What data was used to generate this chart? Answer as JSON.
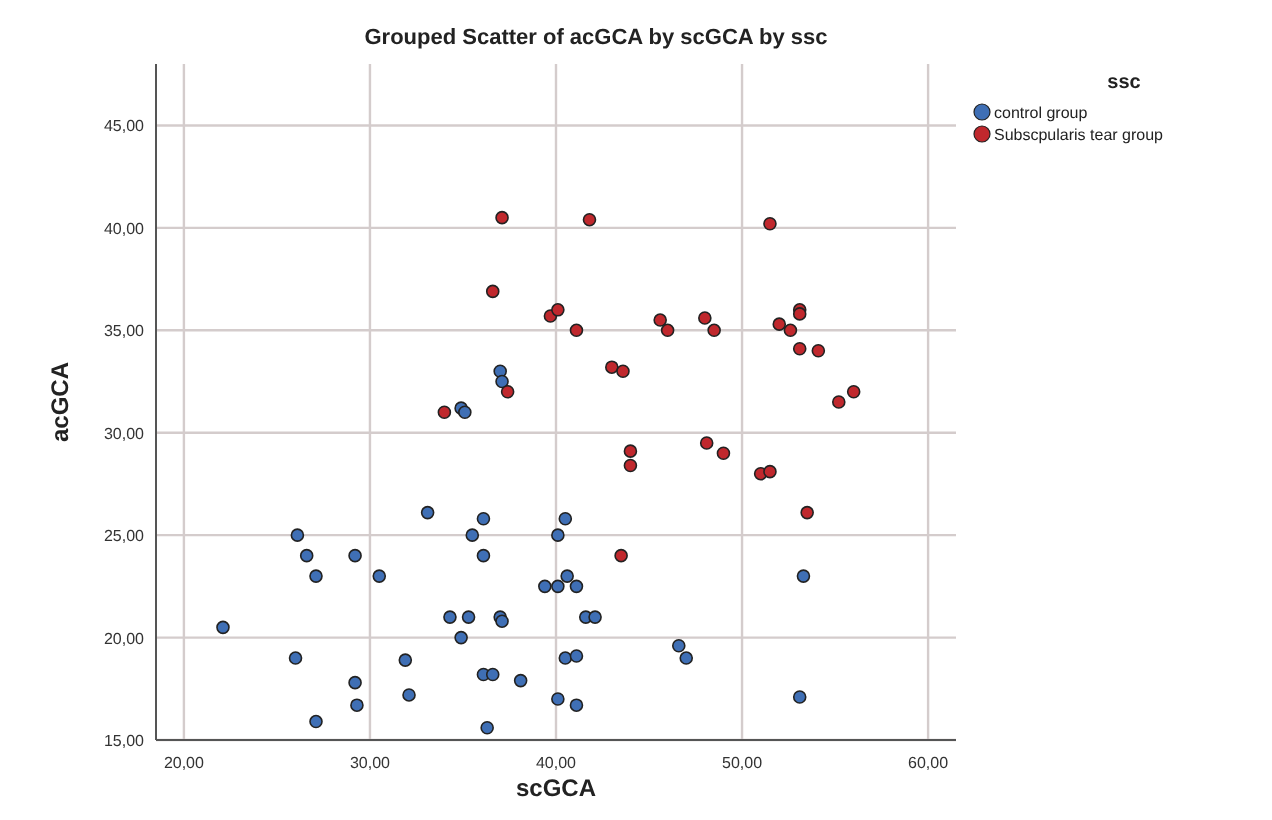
{
  "chart_data": {
    "type": "scatter",
    "title": "Grouped Scatter of acGCA by scGCA by ssc",
    "xlabel": "scGCA",
    "ylabel": "acGCA",
    "legend_title": "ssc",
    "legend": "right",
    "grid": true,
    "marker": "circle",
    "xlim": [
      18.5,
      61.5
    ],
    "ylim": [
      15,
      48
    ],
    "xticks": [
      {
        "value": 20,
        "label": "20,00"
      },
      {
        "value": 30,
        "label": "30,00"
      },
      {
        "value": 40,
        "label": "40,00"
      },
      {
        "value": 50,
        "label": "50,00"
      },
      {
        "value": 60,
        "label": "60,00"
      }
    ],
    "yticks": [
      {
        "value": 15,
        "label": "15,00"
      },
      {
        "value": 20,
        "label": "20,00"
      },
      {
        "value": 25,
        "label": "25,00"
      },
      {
        "value": 30,
        "label": "30,00"
      },
      {
        "value": 35,
        "label": "35,00"
      },
      {
        "value": 40,
        "label": "40,00"
      },
      {
        "value": 45,
        "label": "45,00"
      }
    ],
    "series": [
      {
        "name": "control group",
        "color": "#3f6fb5",
        "x": [
          37.0,
          37.1,
          34.9,
          35.1,
          33.1,
          36.1,
          35.5,
          36.1,
          40.5,
          40.1,
          26.1,
          26.6,
          27.1,
          29.2,
          30.5,
          39.4,
          40.1,
          40.6,
          41.1,
          53.3,
          34.3,
          35.3,
          37.0,
          37.1,
          34.9,
          41.6,
          42.1,
          22.1,
          26.0,
          31.9,
          29.2,
          29.3,
          32.1,
          27.1,
          36.1,
          36.6,
          38.1,
          36.3,
          40.1,
          41.1,
          40.5,
          41.1,
          46.6,
          47.0,
          53.1
        ],
        "values": [
          33.0,
          32.5,
          31.2,
          31.0,
          26.1,
          25.8,
          25.0,
          24.0,
          25.8,
          25.0,
          25.0,
          24.0,
          23.0,
          24.0,
          23.0,
          22.5,
          22.5,
          23.0,
          22.5,
          23.0,
          21.0,
          21.0,
          21.0,
          20.8,
          20.0,
          21.0,
          21.0,
          20.5,
          19.0,
          18.9,
          17.8,
          16.7,
          17.2,
          15.9,
          18.2,
          18.2,
          17.9,
          15.6,
          17.0,
          16.7,
          19.0,
          19.1,
          19.6,
          19.0,
          17.1
        ]
      },
      {
        "name": "Subscpularis tear group",
        "color": "#c0282d",
        "x": [
          37.1,
          41.8,
          51.5,
          36.6,
          39.7,
          40.1,
          41.1,
          53.1,
          53.1,
          52.0,
          52.6,
          53.1,
          54.1,
          45.6,
          46.0,
          48.0,
          48.5,
          43.0,
          43.6,
          37.4,
          34.0,
          55.2,
          56.0,
          44.0,
          44.0,
          48.1,
          49.0,
          51.0,
          51.5,
          53.5,
          43.5
        ],
        "values": [
          40.5,
          40.4,
          40.2,
          36.9,
          35.7,
          36.0,
          35.0,
          36.0,
          35.8,
          35.3,
          35.0,
          34.1,
          34.0,
          35.5,
          35.0,
          35.6,
          35.0,
          33.2,
          33.0,
          32.0,
          31.0,
          31.5,
          32.0,
          29.1,
          28.4,
          29.5,
          29.0,
          28.0,
          28.1,
          26.1,
          24.0
        ]
      }
    ]
  }
}
